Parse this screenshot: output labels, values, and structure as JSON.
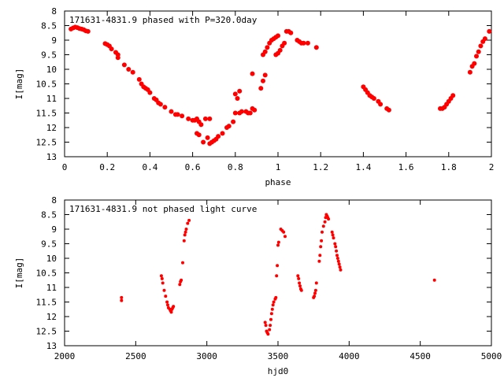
{
  "chart_data": [
    {
      "type": "scatter",
      "title": "171631-4831.9 phased with P=320.0day",
      "xlabel": "phase",
      "ylabel": "I[mag]",
      "xlim": [
        0,
        2
      ],
      "ylim": [
        8,
        13
      ],
      "y_inverted": true,
      "xticks": [
        "0",
        "0.2",
        "0.4",
        "0.6",
        "0.8",
        "1",
        "1.2",
        "1.4",
        "1.6",
        "1.8",
        "2"
      ],
      "yticks": [
        "8",
        "8.5",
        "9",
        "9.5",
        "10",
        "10.5",
        "11",
        "11.5",
        "12",
        "12.5",
        "13"
      ],
      "marker": "filled-circle",
      "marker_color": "#ff0000",
      "series": [
        {
          "values": [
            [
              0.03,
              8.62
            ],
            [
              0.04,
              8.58
            ],
            [
              0.05,
              8.55
            ],
            [
              0.06,
              8.57
            ],
            [
              0.07,
              8.6
            ],
            [
              0.08,
              8.62
            ],
            [
              0.09,
              8.64
            ],
            [
              0.1,
              8.68
            ],
            [
              0.11,
              8.7
            ],
            [
              0.19,
              9.12
            ],
            [
              0.2,
              9.15
            ],
            [
              0.21,
              9.2
            ],
            [
              0.22,
              9.3
            ],
            [
              0.24,
              9.42
            ],
            [
              0.25,
              9.5
            ],
            [
              0.25,
              9.6
            ],
            [
              0.28,
              9.85
            ],
            [
              0.3,
              10.0
            ],
            [
              0.32,
              10.1
            ],
            [
              0.35,
              10.35
            ],
            [
              0.36,
              10.5
            ],
            [
              0.37,
              10.6
            ],
            [
              0.38,
              10.65
            ],
            [
              0.39,
              10.7
            ],
            [
              0.4,
              10.8
            ],
            [
              0.42,
              11.0
            ],
            [
              0.43,
              11.05
            ],
            [
              0.44,
              11.15
            ],
            [
              0.45,
              11.2
            ],
            [
              0.47,
              11.3
            ],
            [
              0.5,
              11.45
            ],
            [
              0.52,
              11.55
            ],
            [
              0.53,
              11.55
            ],
            [
              0.55,
              11.6
            ],
            [
              0.58,
              11.7
            ],
            [
              0.6,
              11.75
            ],
            [
              0.61,
              11.75
            ],
            [
              0.62,
              11.7
            ],
            [
              0.63,
              11.8
            ],
            [
              0.64,
              11.9
            ],
            [
              0.66,
              11.7
            ],
            [
              0.68,
              11.7
            ],
            [
              0.62,
              12.2
            ],
            [
              0.63,
              12.25
            ],
            [
              0.65,
              12.5
            ],
            [
              0.67,
              12.35
            ],
            [
              0.68,
              12.55
            ],
            [
              0.69,
              12.5
            ],
            [
              0.7,
              12.45
            ],
            [
              0.71,
              12.4
            ],
            [
              0.72,
              12.3
            ],
            [
              0.74,
              12.2
            ],
            [
              0.76,
              12.0
            ],
            [
              0.77,
              11.95
            ],
            [
              0.79,
              11.8
            ],
            [
              0.8,
              11.5
            ],
            [
              0.82,
              11.5
            ],
            [
              0.83,
              11.45
            ],
            [
              0.85,
              11.45
            ],
            [
              0.86,
              11.5
            ],
            [
              0.87,
              11.5
            ],
            [
              0.88,
              11.35
            ],
            [
              0.89,
              11.4
            ],
            [
              0.8,
              10.85
            ],
            [
              0.81,
              11.0
            ],
            [
              0.82,
              10.75
            ],
            [
              0.88,
              10.15
            ],
            [
              0.92,
              10.65
            ],
            [
              0.93,
              10.4
            ],
            [
              0.94,
              10.2
            ],
            [
              0.93,
              9.5
            ],
            [
              0.94,
              9.4
            ],
            [
              0.95,
              9.25
            ],
            [
              0.96,
              9.1
            ],
            [
              0.97,
              9.0
            ],
            [
              0.98,
              8.95
            ],
            [
              0.99,
              8.9
            ],
            [
              1.0,
              8.85
            ],
            [
              0.99,
              9.5
            ],
            [
              1.0,
              9.45
            ],
            [
              1.01,
              9.35
            ],
            [
              1.02,
              9.2
            ],
            [
              1.03,
              9.1
            ],
            [
              1.04,
              8.7
            ],
            [
              1.05,
              8.7
            ],
            [
              1.06,
              8.75
            ],
            [
              1.09,
              9.0
            ],
            [
              1.1,
              9.05
            ],
            [
              1.11,
              9.1
            ],
            [
              1.12,
              9.1
            ],
            [
              1.14,
              9.1
            ],
            [
              1.18,
              9.25
            ],
            [
              1.4,
              10.6
            ],
            [
              1.41,
              10.7
            ],
            [
              1.42,
              10.8
            ],
            [
              1.43,
              10.9
            ],
            [
              1.44,
              10.95
            ],
            [
              1.45,
              11.0
            ],
            [
              1.47,
              11.1
            ],
            [
              1.48,
              11.2
            ],
            [
              1.51,
              11.35
            ],
            [
              1.52,
              11.4
            ],
            [
              1.76,
              11.35
            ],
            [
              1.77,
              11.35
            ],
            [
              1.78,
              11.3
            ],
            [
              1.79,
              11.2
            ],
            [
              1.8,
              11.1
            ],
            [
              1.81,
              11.0
            ],
            [
              1.82,
              10.9
            ],
            [
              1.9,
              10.1
            ],
            [
              1.91,
              9.9
            ],
            [
              1.92,
              9.8
            ],
            [
              1.93,
              9.55
            ],
            [
              1.94,
              9.4
            ],
            [
              1.95,
              9.2
            ],
            [
              1.96,
              9.05
            ],
            [
              1.97,
              8.95
            ],
            [
              1.99,
              8.7
            ]
          ]
        }
      ]
    },
    {
      "type": "scatter",
      "title": "171631-4831.9 not phased light curve",
      "xlabel": "hjd0",
      "ylabel": "I[mag]",
      "xlim": [
        2000,
        5000
      ],
      "ylim": [
        8,
        13
      ],
      "y_inverted": true,
      "xticks": [
        "2000",
        "2500",
        "3000",
        "3500",
        "4000",
        "4500",
        "5000"
      ],
      "yticks": [
        "8",
        "8.5",
        "9",
        "9.5",
        "10",
        "10.5",
        "11",
        "11.5",
        "12",
        "12.5",
        "13"
      ],
      "marker": "filled-circle",
      "marker_color": "#ff0000",
      "series": [
        {
          "values": [
            [
              2400,
              11.35
            ],
            [
              2400,
              11.45
            ],
            [
              2680,
              10.6
            ],
            [
              2685,
              10.7
            ],
            [
              2690,
              10.85
            ],
            [
              2700,
              11.1
            ],
            [
              2710,
              11.3
            ],
            [
              2720,
              11.5
            ],
            [
              2725,
              11.6
            ],
            [
              2730,
              11.7
            ],
            [
              2740,
              11.75
            ],
            [
              2745,
              11.8
            ],
            [
              2750,
              11.85
            ],
            [
              2755,
              11.75
            ],
            [
              2760,
              11.7
            ],
            [
              2765,
              11.65
            ],
            [
              2810,
              10.9
            ],
            [
              2815,
              10.8
            ],
            [
              2820,
              10.75
            ],
            [
              2830,
              10.15
            ],
            [
              2840,
              9.4
            ],
            [
              2845,
              9.2
            ],
            [
              2850,
              9.1
            ],
            [
              2855,
              9.0
            ],
            [
              2865,
              8.8
            ],
            [
              2875,
              8.7
            ],
            [
              3410,
              12.2
            ],
            [
              3415,
              12.3
            ],
            [
              3420,
              12.5
            ],
            [
              3425,
              12.55
            ],
            [
              3430,
              12.6
            ],
            [
              3440,
              12.45
            ],
            [
              3445,
              12.3
            ],
            [
              3450,
              12.1
            ],
            [
              3455,
              11.9
            ],
            [
              3460,
              11.75
            ],
            [
              3465,
              11.6
            ],
            [
              3470,
              11.5
            ],
            [
              3480,
              11.4
            ],
            [
              3485,
              11.35
            ],
            [
              3490,
              10.6
            ],
            [
              3495,
              10.25
            ],
            [
              3500,
              9.55
            ],
            [
              3505,
              9.45
            ],
            [
              3520,
              9.0
            ],
            [
              3530,
              9.05
            ],
            [
              3540,
              9.1
            ],
            [
              3550,
              9.25
            ],
            [
              3640,
              10.6
            ],
            [
              3645,
              10.7
            ],
            [
              3650,
              10.85
            ],
            [
              3655,
              10.95
            ],
            [
              3660,
              11.05
            ],
            [
              3665,
              11.1
            ],
            [
              3750,
              11.35
            ],
            [
              3755,
              11.3
            ],
            [
              3760,
              11.2
            ],
            [
              3765,
              11.1
            ],
            [
              3770,
              10.85
            ],
            [
              3790,
              10.1
            ],
            [
              3795,
              9.9
            ],
            [
              3800,
              9.6
            ],
            [
              3805,
              9.4
            ],
            [
              3810,
              9.1
            ],
            [
              3820,
              8.9
            ],
            [
              3830,
              8.75
            ],
            [
              3835,
              8.6
            ],
            [
              3840,
              8.5
            ],
            [
              3845,
              8.55
            ],
            [
              3850,
              8.6
            ],
            [
              3855,
              8.65
            ],
            [
              3880,
              9.1
            ],
            [
              3885,
              9.2
            ],
            [
              3890,
              9.3
            ],
            [
              3900,
              9.5
            ],
            [
              3905,
              9.6
            ],
            [
              3910,
              9.75
            ],
            [
              3915,
              9.9
            ],
            [
              3920,
              10.0
            ],
            [
              3925,
              10.1
            ],
            [
              3930,
              10.2
            ],
            [
              3935,
              10.3
            ],
            [
              3940,
              10.4
            ],
            [
              4600,
              10.75
            ]
          ]
        }
      ]
    }
  ]
}
